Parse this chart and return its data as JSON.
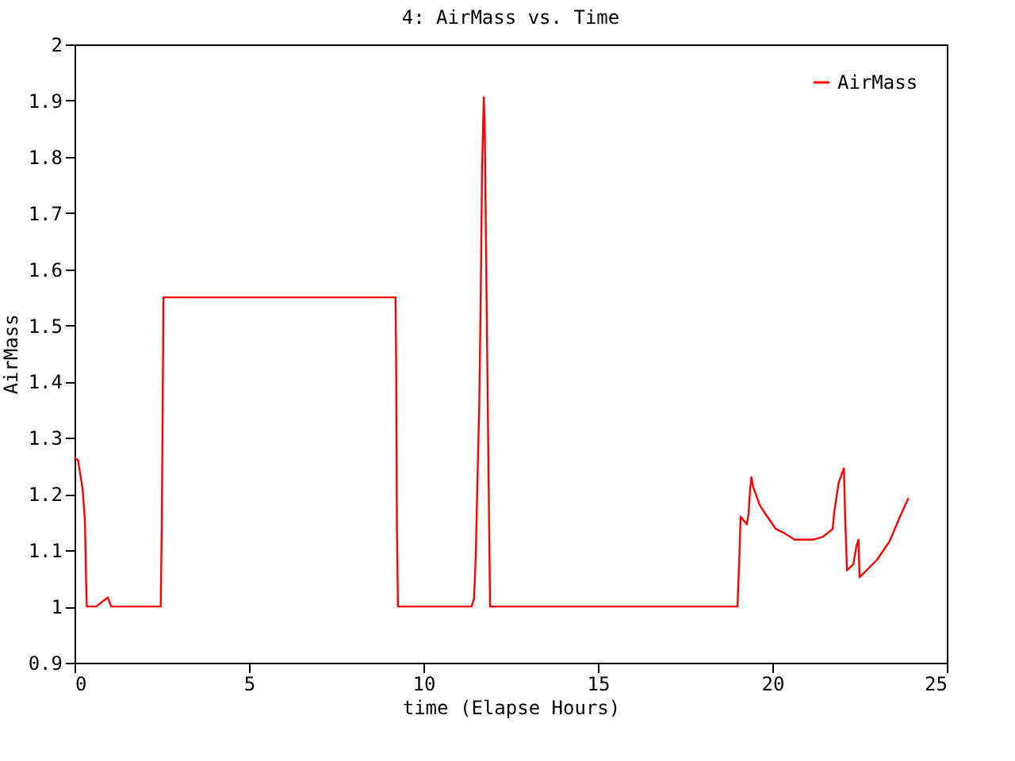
{
  "chart_data": {
    "type": "line",
    "title": "4: AirMass vs. Time",
    "xlabel": "time (Elapse Hours)",
    "ylabel": "AirMass",
    "x": [
      0,
      0.1,
      0.23,
      0.3,
      0.33,
      0.35,
      0.62,
      0.95,
      1.05,
      2.47,
      2.5,
      2.55,
      9.2,
      9.22,
      9.24,
      9.27,
      11.38,
      11.45,
      11.5,
      11.55,
      11.6,
      11.64,
      11.68,
      11.73,
      11.76,
      11.78,
      11.82,
      11.88,
      11.91,
      19.0,
      19.05,
      19.09,
      19.27,
      19.32,
      19.36,
      19.4,
      19.45,
      19.64,
      19.82,
      20.1,
      20.36,
      20.64,
      21.18,
      21.45,
      21.73,
      21.77,
      21.9,
      22.05,
      22.09,
      22.14,
      22.32,
      22.41,
      22.47,
      22.5,
      22.6,
      23.0,
      23.36,
      23.68,
      23.9
    ],
    "series": [
      {
        "name": "AirMass",
        "color": "#ff0000",
        "values": [
          1.265,
          1.26,
          1.21,
          1.15,
          1.05,
          1.0,
          1.0,
          1.016,
          1.0,
          1.0,
          1.14,
          1.55,
          1.55,
          1.414,
          1.14,
          1.0,
          1.0,
          1.014,
          1.09,
          1.23,
          1.36,
          1.54,
          1.78,
          1.906,
          1.84,
          1.715,
          1.49,
          1.16,
          1.0,
          1.0,
          1.08,
          1.16,
          1.146,
          1.166,
          1.207,
          1.23,
          1.213,
          1.18,
          1.163,
          1.138,
          1.13,
          1.119,
          1.119,
          1.124,
          1.138,
          1.166,
          1.22,
          1.246,
          1.152,
          1.064,
          1.075,
          1.107,
          1.119,
          1.052,
          1.058,
          1.083,
          1.116,
          1.163,
          1.193
        ]
      }
    ],
    "xlim": [
      0,
      25
    ],
    "xticks": [
      0,
      5,
      10,
      15,
      20,
      25
    ],
    "ylim": [
      0.9,
      2
    ],
    "yticks": [
      0.9,
      1,
      1.1,
      1.2,
      1.3,
      1.4,
      1.5,
      1.6,
      1.7,
      1.8,
      1.9,
      2
    ],
    "grid": false,
    "legend": "top right",
    "line_style": "solid",
    "marker": "none"
  }
}
